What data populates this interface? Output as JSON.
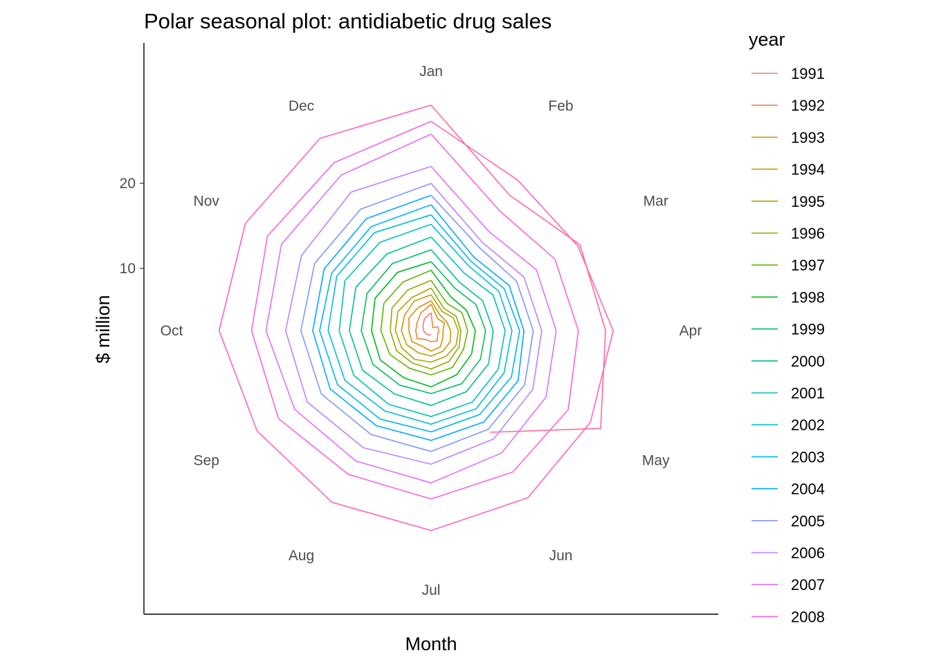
{
  "chart_data": {
    "type": "line",
    "coordinate_system": "polar",
    "title": "Polar seasonal plot: antidiabetic drug sales",
    "xlabel": "Month",
    "ylabel": "$ million",
    "categories": [
      "Jan",
      "Feb",
      "Mar",
      "Apr",
      "May",
      "Jun",
      "Jul",
      "Aug",
      "Sep",
      "Oct",
      "Nov",
      "Dec"
    ],
    "y_ticks": [
      10,
      20
    ],
    "ylim": [
      3,
      30
    ],
    "legend": {
      "title": "year",
      "position": "right"
    },
    "grid": false,
    "series": [
      {
        "name": "1991",
        "color": "#F8766D",
        "values": [
          null,
          null,
          null,
          null,
          null,
          null,
          3.5,
          3.6,
          3.7,
          3.9,
          4.1,
          4.6
        ]
      },
      {
        "name": "1992",
        "color": "#EC8239",
        "values": [
          5.1,
          3.4,
          3.9,
          3.9,
          3.9,
          4.4,
          4.3,
          4.2,
          4.9,
          4.8,
          4.9,
          5.4
        ]
      },
      {
        "name": "1993",
        "color": "#DB8E00",
        "values": [
          6.1,
          4.6,
          4.8,
          4.4,
          4.6,
          5.2,
          5.4,
          5.1,
          5.6,
          5.6,
          6.0,
          6.1
        ]
      },
      {
        "name": "1994",
        "color": "#C79800",
        "values": [
          6.5,
          5.1,
          5.1,
          5.3,
          5.6,
          5.8,
          6.0,
          6.0,
          6.3,
          6.5,
          6.6,
          7.0
        ]
      },
      {
        "name": "1995",
        "color": "#AEA200",
        "values": [
          7.2,
          5.6,
          6.0,
          6.2,
          6.4,
          6.5,
          6.7,
          6.9,
          7.0,
          7.2,
          7.5,
          7.5
        ]
      },
      {
        "name": "1996",
        "color": "#8FAA00",
        "values": [
          8.0,
          6.0,
          6.4,
          6.5,
          6.8,
          7.2,
          7.5,
          7.4,
          7.7,
          7.8,
          8.3,
          8.5
        ]
      },
      {
        "name": "1997",
        "color": "#64B200",
        "values": [
          8.9,
          6.7,
          7.2,
          7.3,
          7.4,
          8.0,
          8.2,
          8.1,
          8.6,
          8.9,
          9.4,
          9.6
        ]
      },
      {
        "name": "1998",
        "color": "#00B81B",
        "values": [
          10.1,
          7.6,
          7.8,
          8.2,
          8.5,
          9.0,
          9.6,
          9.4,
          9.9,
          10.0,
          10.6,
          10.9
        ]
      },
      {
        "name": "1999",
        "color": "#00BD5C",
        "values": [
          11.1,
          8.7,
          9.1,
          9.4,
          9.7,
          10.2,
          10.4,
          10.4,
          10.9,
          11.2,
          11.7,
          12.1
        ]
      },
      {
        "name": "2000",
        "color": "#00C08E",
        "values": [
          12.5,
          9.6,
          10.0,
          10.3,
          10.8,
          11.3,
          11.8,
          11.6,
          12.3,
          12.6,
          13.2,
          13.4
        ]
      },
      {
        "name": "2001",
        "color": "#00C1B7",
        "values": [
          14.0,
          10.8,
          11.4,
          11.7,
          12.1,
          12.7,
          13.1,
          13.0,
          13.5,
          13.8,
          14.7,
          15.0
        ]
      },
      {
        "name": "2002",
        "color": "#00BDD4",
        "values": [
          15.5,
          11.8,
          12.2,
          12.5,
          12.9,
          13.6,
          14.0,
          13.9,
          14.7,
          15.1,
          15.8,
          16.3
        ]
      },
      {
        "name": "2003",
        "color": "#00B5EE",
        "values": [
          16.6,
          12.4,
          12.9,
          13.4,
          13.9,
          14.4,
          14.9,
          15.0,
          15.7,
          16.1,
          16.5,
          17.1
        ]
      },
      {
        "name": "2004",
        "color": "#00A7FF",
        "values": [
          17.8,
          13.0,
          13.6,
          13.9,
          14.8,
          15.4,
          15.9,
          15.9,
          16.7,
          16.9,
          17.5,
          18.2
        ]
      },
      {
        "name": "2005",
        "color": "#7F96FF",
        "values": [
          18.9,
          14.3,
          14.6,
          15.0,
          15.7,
          16.4,
          17.2,
          17.1,
          17.9,
          18.3,
          18.8,
          19.5
        ]
      },
      {
        "name": "2006",
        "color": "#BC81FF",
        "values": [
          20.3,
          15.0,
          15.6,
          16.0,
          16.8,
          17.7,
          18.7,
          18.9,
          19.8,
          20.1,
          20.6,
          21.8
        ]
      },
      {
        "name": "2007",
        "color": "#E26EF7",
        "values": [
          22.3,
          16.5,
          17.3,
          17.7,
          18.6,
          19.6,
          20.9,
          20.7,
          21.5,
          22.4,
          23.3,
          24.1
        ]
      },
      {
        "name": "2008",
        "color": "#F863DF",
        "values": [
          26.1,
          19.2,
          19.8,
          20.3,
          21.6,
          22.2,
          22.8,
          22.5,
          23.7,
          24.1,
          25.2,
          25.8
        ]
      },
      {
        "name": "",
        "color": "#FF62BC",
        "values": [
          27.6,
          23.4,
          22.9,
          24.4,
          24.6,
          25.7,
          26.5,
          26.3,
          26.6,
          27.9,
          28.2,
          29.1
        ]
      },
      {
        "name": "",
        "color": "#FF6A98",
        "values": [
          29.5,
          21.4,
          23.2,
          23.5,
          26.0,
          16.8,
          null,
          null,
          null,
          null,
          null,
          null
        ]
      }
    ]
  }
}
